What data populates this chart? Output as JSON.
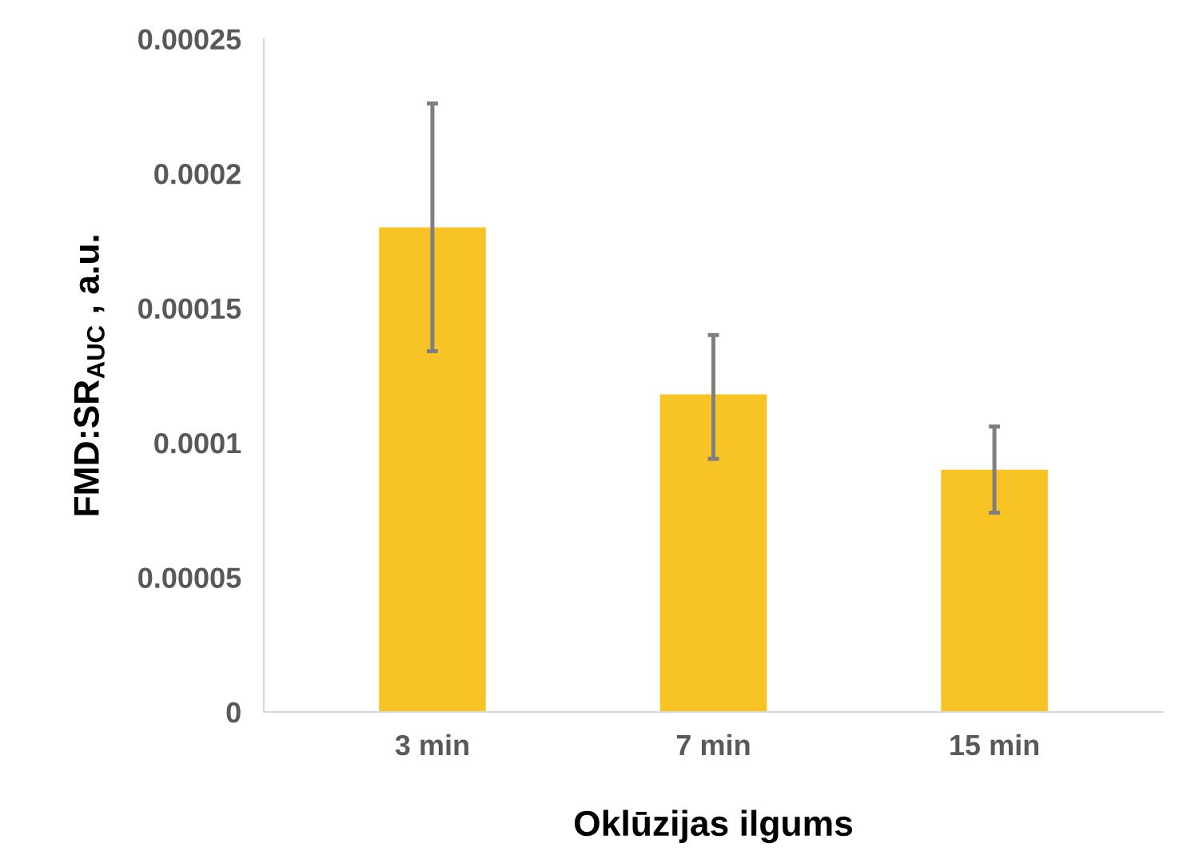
{
  "chart_data": {
    "type": "bar",
    "xlabel": "Oklūzijas ilgums",
    "ylabel": "FMD:SR$_{AUC}$ , a.u.",
    "categories": [
      "3 min",
      "7 min",
      "15 min"
    ],
    "values": [
      0.00018,
      0.000118,
      9e-05
    ],
    "errors": [
      [
        0.000134,
        0.000226
      ],
      [
        9.4e-05,
        0.00014
      ],
      [
        7.4e-05,
        0.000106
      ]
    ],
    "color": "#f7c325",
    "ylim": [
      0,
      0.00025
    ],
    "yticks": [
      0,
      {
        "value": 5e-05,
        "label": "0.00005"
      },
      {
        "value": 0.0001,
        "label": "0.0001"
      },
      {
        "value": 0.00015,
        "label": "0.00015"
      },
      {
        "value": 0.0002,
        "label": "0.0002"
      },
      {
        "value": 0.00025,
        "label": "0.00025"
      }
    ],
    "grid": false
  }
}
